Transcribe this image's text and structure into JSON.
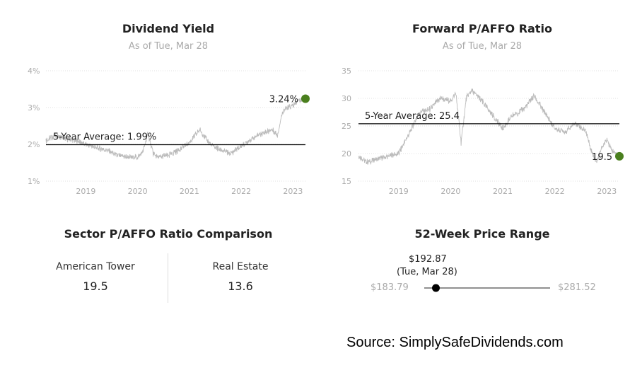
{
  "dividend_yield": {
    "title": "Dividend Yield",
    "subtitle": "As of Tue, Mar 28",
    "average_label": "5-Year Average: 1.99%",
    "last_label": "3.24%"
  },
  "pffo": {
    "title": "Forward P/AFFO Ratio",
    "subtitle": "As of Tue, Mar 28",
    "average_label": "5-Year Average: 25.4",
    "last_label": "19.5"
  },
  "sector": {
    "title": "Sector P/AFFO Ratio Comparison",
    "items": [
      {
        "name": "American Tower",
        "value": "19.5"
      },
      {
        "name": "Real Estate",
        "value": "13.6"
      }
    ]
  },
  "price_range": {
    "title": "52-Week Price Range",
    "current_price": "$192.87",
    "current_date": "(Tue, Mar 28)",
    "low_label": "$183.79",
    "high_label": "$281.52",
    "low": 183.79,
    "high": 281.52,
    "current": 192.87,
    "marker_color": "#000000"
  },
  "source": "Source: SimplySafeDividends.com",
  "colors": {
    "line": "#bbbbbb",
    "average": "#000000",
    "last_point": "#4a7f1e",
    "grid": "#e0e0e0"
  },
  "chart_data": [
    {
      "type": "line",
      "title": "Dividend Yield",
      "subtitle": "As of Tue, Mar 28",
      "y_ticks": [
        "1%",
        "2%",
        "3%",
        "4%"
      ],
      "x_ticks": [
        "2019",
        "2020",
        "2021",
        "2022",
        "2023"
      ],
      "x_range": [
        2018.23,
        2023.24
      ],
      "ylim": [
        1,
        4
      ],
      "grid": "horizontal dotted",
      "average": 1.99,
      "average_label": "5-Year Average: 1.99%",
      "last_value": 3.24,
      "x": [
        2018.23,
        2018.4,
        2018.6,
        2018.8,
        2019.0,
        2019.2,
        2019.4,
        2019.6,
        2019.8,
        2020.0,
        2020.1,
        2020.2,
        2020.3,
        2020.4,
        2020.6,
        2020.8,
        2021.0,
        2021.2,
        2021.4,
        2021.6,
        2021.8,
        2022.0,
        2022.2,
        2022.4,
        2022.6,
        2022.7,
        2022.8,
        2022.9,
        2023.0,
        2023.1,
        2023.24
      ],
      "values": [
        2.1,
        2.25,
        2.15,
        2.1,
        2.0,
        1.9,
        1.85,
        1.7,
        1.65,
        1.65,
        1.8,
        2.3,
        1.75,
        1.65,
        1.7,
        1.85,
        2.05,
        2.4,
        2.0,
        1.85,
        1.75,
        1.95,
        2.15,
        2.3,
        2.4,
        2.25,
        2.9,
        3.0,
        3.05,
        3.2,
        3.24
      ]
    },
    {
      "type": "line",
      "title": "Forward P/AFFO Ratio",
      "subtitle": "As of Tue, Mar 28",
      "y_ticks": [
        "15",
        "20",
        "25",
        "30",
        "35"
      ],
      "x_ticks": [
        "2019",
        "2020",
        "2021",
        "2022",
        "2023"
      ],
      "x_range": [
        2018.23,
        2023.24
      ],
      "ylim": [
        15,
        35
      ],
      "grid": "horizontal dotted",
      "average": 25.4,
      "average_label": "5-Year Average: 25.4",
      "last_value": 19.5,
      "x": [
        2018.23,
        2018.4,
        2018.6,
        2018.8,
        2019.0,
        2019.2,
        2019.4,
        2019.6,
        2019.8,
        2020.0,
        2020.1,
        2020.2,
        2020.3,
        2020.4,
        2020.6,
        2020.8,
        2021.0,
        2021.2,
        2021.4,
        2021.6,
        2021.8,
        2022.0,
        2022.2,
        2022.4,
        2022.6,
        2022.7,
        2022.8,
        2022.9,
        2023.0,
        2023.1,
        2023.24
      ],
      "values": [
        19.5,
        18.5,
        19.0,
        19.5,
        20.0,
        23.5,
        27.5,
        28.0,
        30.0,
        29.5,
        31.0,
        22.0,
        30.0,
        31.5,
        29.5,
        27.0,
        24.5,
        27.0,
        28.0,
        30.5,
        27.5,
        24.5,
        24.0,
        25.5,
        24.0,
        20.5,
        18.5,
        21.0,
        22.5,
        20.5,
        19.5
      ]
    }
  ]
}
